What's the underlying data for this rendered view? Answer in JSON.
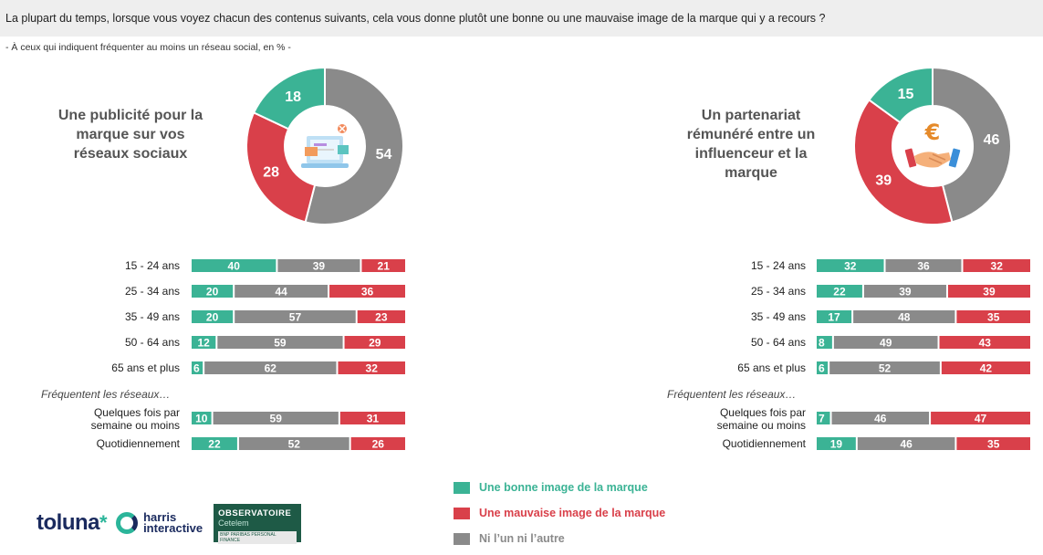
{
  "question": "La plupart du temps, lorsque vous voyez chacun des contenus suivants, cela vous donne plutôt une bonne ou une mauvaise image de la marque qui y a recours ?",
  "subtitle": "- À ceux qui indiquent fréquenter au moins un réseau social, en % -",
  "colors": {
    "good": "#3bb395",
    "bad": "#d9404a",
    "neutral": "#8a8a8a"
  },
  "legend": [
    {
      "key": "good",
      "label": "Une bonne image de la marque",
      "color": "#3bb395"
    },
    {
      "key": "bad",
      "label": "Une mauvaise image de la marque",
      "color": "#d9404a"
    },
    {
      "key": "neutral",
      "label": "Ni l’un ni l’autre",
      "color": "#8a8a8a"
    }
  ],
  "logos": {
    "toluna": "toluna",
    "harris_line1": "harris",
    "harris_line2": "interactive",
    "observatoire_line1": "OBSERVATOIRE",
    "observatoire_line2": "Cetelem",
    "observatoire_line3": "BNP PARIBAS PERSONAL FINANCE"
  },
  "chart_data": [
    {
      "type": "pie",
      "title": "Une publicité pour la marque sur vos réseaux sociaux",
      "icon": "laptop-ads-icon",
      "donut": {
        "good": 18,
        "bad": 28,
        "neutral": 54
      },
      "group_label": "Fréquentent les réseaux…",
      "categories": [
        "15 - 24 ans",
        "25 - 34 ans",
        "35 - 49 ans",
        "50 - 64 ans",
        "65 ans et plus",
        "Quelques fois par semaine ou moins",
        "Quotidiennement"
      ],
      "series": [
        {
          "name": "Une bonne image de la marque",
          "key": "good",
          "values": [
            40,
            20,
            20,
            12,
            6,
            10,
            22
          ]
        },
        {
          "name": "Ni l’un ni l’autre",
          "key": "neutral",
          "values": [
            39,
            44,
            57,
            59,
            62,
            59,
            52
          ]
        },
        {
          "name": "Une mauvaise image de la marque",
          "key": "bad",
          "values": [
            21,
            36,
            23,
            29,
            32,
            31,
            26
          ]
        }
      ]
    },
    {
      "type": "pie",
      "title": "Un partenariat rémunéré entre un influenceur et la marque",
      "icon": "handshake-euro-icon",
      "donut": {
        "good": 15,
        "bad": 39,
        "neutral": 46
      },
      "group_label": "Fréquentent les réseaux…",
      "categories": [
        "15 - 24 ans",
        "25 - 34 ans",
        "35 - 49 ans",
        "50 - 64 ans",
        "65 ans et plus",
        "Quelques fois par semaine ou moins",
        "Quotidiennement"
      ],
      "series": [
        {
          "name": "Une bonne image de la marque",
          "key": "good",
          "values": [
            32,
            22,
            17,
            8,
            6,
            7,
            19
          ]
        },
        {
          "name": "Ni l’un ni l’autre",
          "key": "neutral",
          "values": [
            36,
            39,
            48,
            49,
            52,
            46,
            46
          ]
        },
        {
          "name": "Une mauvaise image de la marque",
          "key": "bad",
          "values": [
            32,
            39,
            35,
            43,
            42,
            47,
            35
          ]
        }
      ]
    }
  ]
}
